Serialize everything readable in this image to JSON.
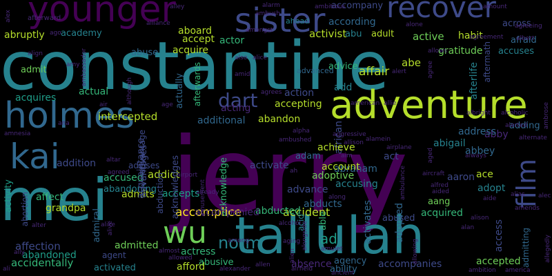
{
  "palette": {
    "background": "#000000",
    "dark_purple": "#440154",
    "purple": "#482878",
    "indigo": "#3e4a89",
    "blue": "#31688e",
    "teal": "#26828e",
    "green_teal": "#1f9e89",
    "green": "#35b779",
    "light_green": "#6ece58",
    "yellow_green": "#b5de2b",
    "yellow": "#fde725"
  },
  "words": [
    {
      "text": "jerry",
      "color": "#440154"
    },
    {
      "text": "constantine",
      "color": "#26828e"
    },
    {
      "text": "tallulah",
      "color": "#26828e"
    },
    {
      "text": "mei",
      "color": "#26828e"
    },
    {
      "text": "adventure",
      "color": "#b5de2b"
    },
    {
      "text": "holmes",
      "color": "#31688e"
    },
    {
      "text": "sister",
      "color": "#3e4a89"
    },
    {
      "text": "younger",
      "color": "#440154"
    },
    {
      "text": "kai",
      "color": "#31688e"
    },
    {
      "text": "recover",
      "color": "#3e4a89"
    },
    {
      "text": "wu",
      "color": "#6ece58"
    },
    {
      "text": "film",
      "color": "#3e4a89"
    },
    {
      "text": "dart",
      "color": "#3e4a89"
    },
    {
      "text": "norm",
      "color": "#26828e"
    },
    {
      "text": "ad",
      "color": "#1f9e89"
    },
    {
      "text": "accomplice",
      "color": "#fde725"
    },
    {
      "text": "accident",
      "color": "#b5de2b"
    },
    {
      "text": "affair",
      "color": "#b5de2b"
    },
    {
      "text": "activist",
      "color": "#b5de2b"
    },
    {
      "text": "active",
      "color": "#6ece58"
    },
    {
      "text": "intercepted",
      "color": "#b5de2b"
    },
    {
      "text": "accompanies",
      "color": "#3e4a89"
    },
    {
      "text": "accepted",
      "color": "#6ece58"
    },
    {
      "text": "accidentally",
      "color": "#35b779"
    },
    {
      "text": "affection",
      "color": "#3e4a89"
    },
    {
      "text": "abandoned",
      "color": "#1f9e89"
    },
    {
      "text": "actress",
      "color": "#35b779"
    },
    {
      "text": "abusive",
      "color": "#35b779"
    },
    {
      "text": "activated",
      "color": "#26828e"
    },
    {
      "text": "afford",
      "color": "#b5de2b"
    },
    {
      "text": "agency",
      "color": "#31688e"
    },
    {
      "text": "ability",
      "color": "#31688e"
    },
    {
      "text": "absence",
      "color": "#482878"
    },
    {
      "text": "admitted",
      "color": "#6ece58"
    },
    {
      "text": "agent",
      "color": "#3e4a89"
    },
    {
      "text": "accepting",
      "color": "#b5de2b"
    },
    {
      "text": "acting",
      "color": "#482878"
    },
    {
      "text": "abandon",
      "color": "#b5de2b"
    },
    {
      "text": "action",
      "color": "#3e4a89"
    },
    {
      "text": "additional",
      "color": "#31688e"
    },
    {
      "text": "acquires",
      "color": "#1f9e89"
    },
    {
      "text": "actual",
      "color": "#35b779"
    },
    {
      "text": "admit",
      "color": "#6ece58"
    },
    {
      "text": "abuse",
      "color": "#31688e"
    },
    {
      "text": "acquire",
      "color": "#b5de2b"
    },
    {
      "text": "academy",
      "color": "#26828e"
    },
    {
      "text": "abruptly",
      "color": "#b5de2b"
    },
    {
      "text": "accept",
      "color": "#b5de2b"
    },
    {
      "text": "actor",
      "color": "#35b779"
    },
    {
      "text": "aboard",
      "color": "#b5de2b"
    },
    {
      "text": "according",
      "color": "#31688e"
    },
    {
      "text": "abu",
      "color": "#26828e"
    },
    {
      "text": "adult",
      "color": "#b5de2b"
    },
    {
      "text": "advice",
      "color": "#35b779"
    },
    {
      "text": "advanced",
      "color": "#31688e"
    },
    {
      "text": "african",
      "color": "#3e4a89"
    },
    {
      "text": "ahead",
      "color": "#26828e"
    },
    {
      "text": "abe",
      "color": "#b5de2b"
    },
    {
      "text": "habit",
      "color": "#b5de2b"
    },
    {
      "text": "gratitude",
      "color": "#6ece58"
    },
    {
      "text": "accuses",
      "color": "#26828e"
    },
    {
      "text": "afraid",
      "color": "#31688e"
    },
    {
      "text": "across",
      "color": "#3e4a89"
    },
    {
      "text": "afterlife",
      "color": "#26828e"
    },
    {
      "text": "aftermath",
      "color": "#3e4a89"
    },
    {
      "text": "accompany",
      "color": "#3e4a89"
    },
    {
      "text": "addict",
      "color": "#b5de2b"
    },
    {
      "text": "accused",
      "color": "#35b779"
    },
    {
      "text": "abandoning",
      "color": "#26828e"
    },
    {
      "text": "addition",
      "color": "#3e4a89"
    },
    {
      "text": "affect",
      "color": "#35b779"
    },
    {
      "text": "grandpa",
      "color": "#b5de2b"
    },
    {
      "text": "activity",
      "color": "#1f9e89"
    },
    {
      "text": "abortion",
      "color": "#3e4a89"
    },
    {
      "text": "admiral",
      "color": "#31688e"
    },
    {
      "text": "admits",
      "color": "#b5de2b"
    },
    {
      "text": "advises",
      "color": "#3e4a89"
    },
    {
      "text": "accepts",
      "color": "#1f9e89"
    },
    {
      "text": "activate",
      "color": "#3e4a89"
    },
    {
      "text": "acknowledge",
      "color": "#35b779"
    },
    {
      "text": "abducted",
      "color": "#35b779"
    },
    {
      "text": "abducts",
      "color": "#31688e"
    },
    {
      "text": "advance",
      "color": "#3e4a89"
    },
    {
      "text": "adoptive",
      "color": "#6ece58"
    },
    {
      "text": "accusing",
      "color": "#26828e"
    },
    {
      "text": "abraham",
      "color": "#31688e"
    },
    {
      "text": "account",
      "color": "#b5de2b"
    },
    {
      "text": "adam",
      "color": "#31688e"
    },
    {
      "text": "achieve",
      "color": "#b5de2b"
    },
    {
      "text": "act",
      "color": "#3e4a89"
    },
    {
      "text": "abigail",
      "color": "#26828e"
    },
    {
      "text": "abbey",
      "color": "#31688e"
    },
    {
      "text": "abby",
      "color": "#482878"
    },
    {
      "text": "address",
      "color": "#31688e"
    },
    {
      "text": "adding",
      "color": "#31688e"
    },
    {
      "text": "ace",
      "color": "#b5de2b"
    },
    {
      "text": "aaron",
      "color": "#3e4a89"
    },
    {
      "text": "adopt",
      "color": "#26828e"
    },
    {
      "text": "aang",
      "color": "#6ece58"
    },
    {
      "text": "acquired",
      "color": "#35b779"
    },
    {
      "text": "abused",
      "color": "#3e4a89"
    },
    {
      "text": "adopted",
      "color": "#31688e"
    },
    {
      "text": "activates",
      "color": "#31688e"
    },
    {
      "text": "able",
      "color": "#35b779"
    },
    {
      "text": "accompanied",
      "color": "#482878"
    },
    {
      "text": "abduction",
      "color": "#3e4a89"
    },
    {
      "text": "acknowledges",
      "color": "#3e4a89"
    },
    {
      "text": "acquaintance",
      "color": "#3e4a89"
    },
    {
      "text": "advantage",
      "color": "#3e4a89"
    },
    {
      "text": "advantages",
      "color": "#3e4a89"
    },
    {
      "text": "actually",
      "color": "#31688e"
    },
    {
      "text": "afterwards",
      "color": "#35b779"
    },
    {
      "text": "access",
      "color": "#3e4a89"
    },
    {
      "text": "admitting",
      "color": "#31688e"
    },
    {
      "text": "add",
      "color": "#26828e"
    },
    {
      "text": "acid",
      "color": "#26828e"
    },
    {
      "text": "ambassador",
      "color": "#482878"
    },
    {
      "text": "afterward",
      "color": "#482878"
    },
    {
      "text": "ambush",
      "color": "#482878"
    },
    {
      "text": "ambitious",
      "color": "#482878"
    },
    {
      "text": "alley",
      "color": "#482878"
    },
    {
      "text": "alliance",
      "color": "#482878"
    },
    {
      "text": "amongst",
      "color": "#482878"
    },
    {
      "text": "alarm",
      "color": "#482878"
    },
    {
      "text": "amount",
      "color": "#482878"
    },
    {
      "text": "agreeing",
      "color": "#482878"
    },
    {
      "text": "alone",
      "color": "#482878"
    },
    {
      "text": "allows",
      "color": "#482878"
    },
    {
      "text": "agreement",
      "color": "#482878"
    },
    {
      "text": "albert",
      "color": "#482878"
    },
    {
      "text": "alert",
      "color": "#482878"
    },
    {
      "text": "agree",
      "color": "#482878"
    },
    {
      "text": "alongside",
      "color": "#482878"
    },
    {
      "text": "alerted",
      "color": "#482878"
    },
    {
      "text": "albright",
      "color": "#482878"
    },
    {
      "text": "alcoholic",
      "color": "#482878"
    },
    {
      "text": "agrees",
      "color": "#482878"
    },
    {
      "text": "american",
      "color": "#482878"
    },
    {
      "text": "allie",
      "color": "#482878"
    },
    {
      "text": "alice",
      "color": "#482878"
    },
    {
      "text": "also",
      "color": "#482878"
    },
    {
      "text": "amid",
      "color": "#482878"
    },
    {
      "text": "amy",
      "color": "#482878"
    },
    {
      "text": "align",
      "color": "#482878"
    },
    {
      "text": "although",
      "color": "#482878"
    },
    {
      "text": "air",
      "color": "#482878"
    },
    {
      "text": "age",
      "color": "#482878"
    },
    {
      "text": "amnesia",
      "color": "#482878"
    },
    {
      "text": "ana",
      "color": "#482878"
    },
    {
      "text": "alpha",
      "color": "#482878"
    },
    {
      "text": "ambushed",
      "color": "#482878"
    },
    {
      "text": "allison",
      "color": "#482878"
    },
    {
      "text": "alamein",
      "color": "#482878"
    },
    {
      "text": "aggressive",
      "color": "#482878"
    },
    {
      "text": "aged",
      "color": "#482878"
    },
    {
      "text": "airplane",
      "color": "#482878"
    },
    {
      "text": "aim",
      "color": "#482878"
    },
    {
      "text": "ah",
      "color": "#482878"
    },
    {
      "text": "always",
      "color": "#482878"
    },
    {
      "text": "alternate",
      "color": "#482878"
    },
    {
      "text": "airport",
      "color": "#482878"
    },
    {
      "text": "altar",
      "color": "#482878"
    },
    {
      "text": "agreed",
      "color": "#482878"
    },
    {
      "text": "amusement",
      "color": "#482878"
    },
    {
      "text": "already",
      "color": "#482878"
    },
    {
      "text": "alike",
      "color": "#482878"
    },
    {
      "text": "alive",
      "color": "#482878"
    },
    {
      "text": "along",
      "color": "#482878"
    },
    {
      "text": "aircraft",
      "color": "#482878"
    },
    {
      "text": "alfred",
      "color": "#482878"
    },
    {
      "text": "aided",
      "color": "#482878"
    },
    {
      "text": "aide",
      "color": "#482878"
    },
    {
      "text": "alec",
      "color": "#482878"
    },
    {
      "text": "amends",
      "color": "#482878"
    },
    {
      "text": "alias",
      "color": "#482878"
    },
    {
      "text": "almost",
      "color": "#482878"
    },
    {
      "text": "alter",
      "color": "#482878"
    },
    {
      "text": "alcohol",
      "color": "#482878"
    },
    {
      "text": "alien",
      "color": "#482878"
    },
    {
      "text": "alison",
      "color": "#482878"
    },
    {
      "text": "alan",
      "color": "#482878"
    },
    {
      "text": "aging",
      "color": "#482878"
    },
    {
      "text": "among",
      "color": "#482878"
    },
    {
      "text": "allowed",
      "color": "#482878"
    },
    {
      "text": "allowing",
      "color": "#482878"
    },
    {
      "text": "ambulance",
      "color": "#482878"
    },
    {
      "text": "ambition",
      "color": "#482878"
    },
    {
      "text": "america",
      "color": "#482878"
    },
    {
      "text": "amulet",
      "color": "#482878"
    },
    {
      "text": "airfield",
      "color": "#482878"
    },
    {
      "text": "ancient",
      "color": "#482878"
    },
    {
      "text": "allen",
      "color": "#482878"
    },
    {
      "text": "alexander",
      "color": "#482878"
    },
    {
      "text": "ally",
      "color": "#482878"
    },
    {
      "text": "ali",
      "color": "#482878"
    },
    {
      "text": "ago",
      "color": "#482878"
    },
    {
      "text": "alex",
      "color": "#482878"
    },
    {
      "text": "ambrose",
      "color": "#482878"
    },
    {
      "text": "allegedly",
      "color": "#482878"
    }
  ]
}
